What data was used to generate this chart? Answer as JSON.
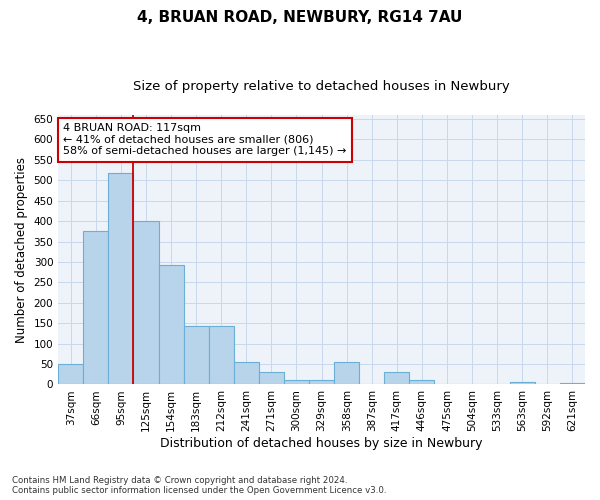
{
  "title": "4, BRUAN ROAD, NEWBURY, RG14 7AU",
  "subtitle": "Size of property relative to detached houses in Newbury",
  "xlabel": "Distribution of detached houses by size in Newbury",
  "ylabel": "Number of detached properties",
  "bin_labels": [
    "37sqm",
    "66sqm",
    "95sqm",
    "125sqm",
    "154sqm",
    "183sqm",
    "212sqm",
    "241sqm",
    "271sqm",
    "300sqm",
    "329sqm",
    "358sqm",
    "387sqm",
    "417sqm",
    "446sqm",
    "475sqm",
    "504sqm",
    "533sqm",
    "563sqm",
    "592sqm",
    "621sqm"
  ],
  "bar_values": [
    51,
    376,
    519,
    401,
    292,
    142,
    142,
    55,
    30,
    10,
    10,
    55,
    0,
    30,
    10,
    0,
    0,
    0,
    5,
    0,
    4
  ],
  "bar_color": "#b8d4ea",
  "bar_edge_color": "#6baed6",
  "vline_color": "#cc0000",
  "annotation_text": "4 BRUAN ROAD: 117sqm\n← 41% of detached houses are smaller (806)\n58% of semi-detached houses are larger (1,145) →",
  "annotation_box_color": "#ffffff",
  "annotation_box_edge": "#cc0000",
  "ylim": [
    0,
    660
  ],
  "yticks": [
    0,
    50,
    100,
    150,
    200,
    250,
    300,
    350,
    400,
    450,
    500,
    550,
    600,
    650
  ],
  "grid_color": "#c8d8ec",
  "background_color": "#eef2f9",
  "footer_line1": "Contains HM Land Registry data © Crown copyright and database right 2024.",
  "footer_line2": "Contains public sector information licensed under the Open Government Licence v3.0.",
  "title_fontsize": 11,
  "subtitle_fontsize": 9.5,
  "axis_label_fontsize": 8.5,
  "tick_fontsize": 7.5,
  "annotation_fontsize": 8
}
